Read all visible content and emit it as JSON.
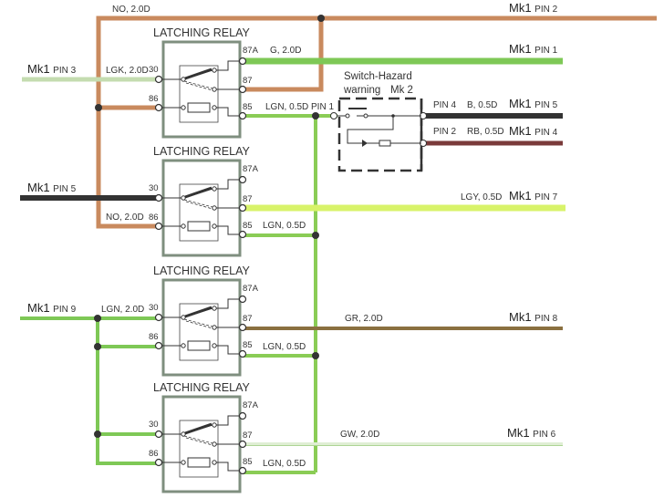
{
  "relay_title": "LATCHING RELAY",
  "relay_pins": {
    "p87a": "87A",
    "p30": "30",
    "p87": "87",
    "p86": "86",
    "p85": "85"
  },
  "colors": {
    "brown": "#c98a5e",
    "green": "#7ec856",
    "pale_green": "#c4dcb0",
    "black": "#333333",
    "lgn": "#8acc55",
    "lgy": "#d8f36a",
    "gr": "#8a7040",
    "rb": "#7a3a3a",
    "gw": "#dfeed4",
    "box": "#7f8f7f"
  },
  "wires": {
    "no_top": "NO, 2.0D",
    "g": "G, 2.0D",
    "lgk": "LGK, 2.0D",
    "lgn1": "LGN, 0.5D",
    "pin1": "PIN 1",
    "b": "B, 0.5D",
    "pin4": "PIN 4",
    "rb": "RB, 0.5D",
    "pin2": "PIN 2",
    "lgy": "LGY, 0.5D",
    "no_2": "NO, 2.0D",
    "lgn2": "LGN, 0.5D",
    "lgn_in": "LGN, 2.0D",
    "gr": "GR, 2.0D",
    "lgn3": "LGN, 0.5D",
    "gw": "GW, 2.0D",
    "lgn4": "LGN, 0.5D"
  },
  "switch": {
    "line1": "Switch-Hazard",
    "line2": "warning",
    "mk": "Mk 2"
  },
  "connectors": [
    {
      "mk": "Mk1",
      "pin": "PIN 2"
    },
    {
      "mk": "Mk1",
      "pin": "PIN 1"
    },
    {
      "mk": "Mk1",
      "pin": "PIN 3"
    },
    {
      "mk": "Mk1",
      "pin": "PIN 5"
    },
    {
      "mk": "Mk1",
      "pin": "PIN 4"
    },
    {
      "mk": "Mk1",
      "pin": "PIN 5"
    },
    {
      "mk": "Mk1",
      "pin": "PIN 7"
    },
    {
      "mk": "Mk1",
      "pin": "PIN 9"
    },
    {
      "mk": "Mk1",
      "pin": "PIN 8"
    },
    {
      "mk": "Mk1",
      "pin": "PIN 6"
    }
  ]
}
